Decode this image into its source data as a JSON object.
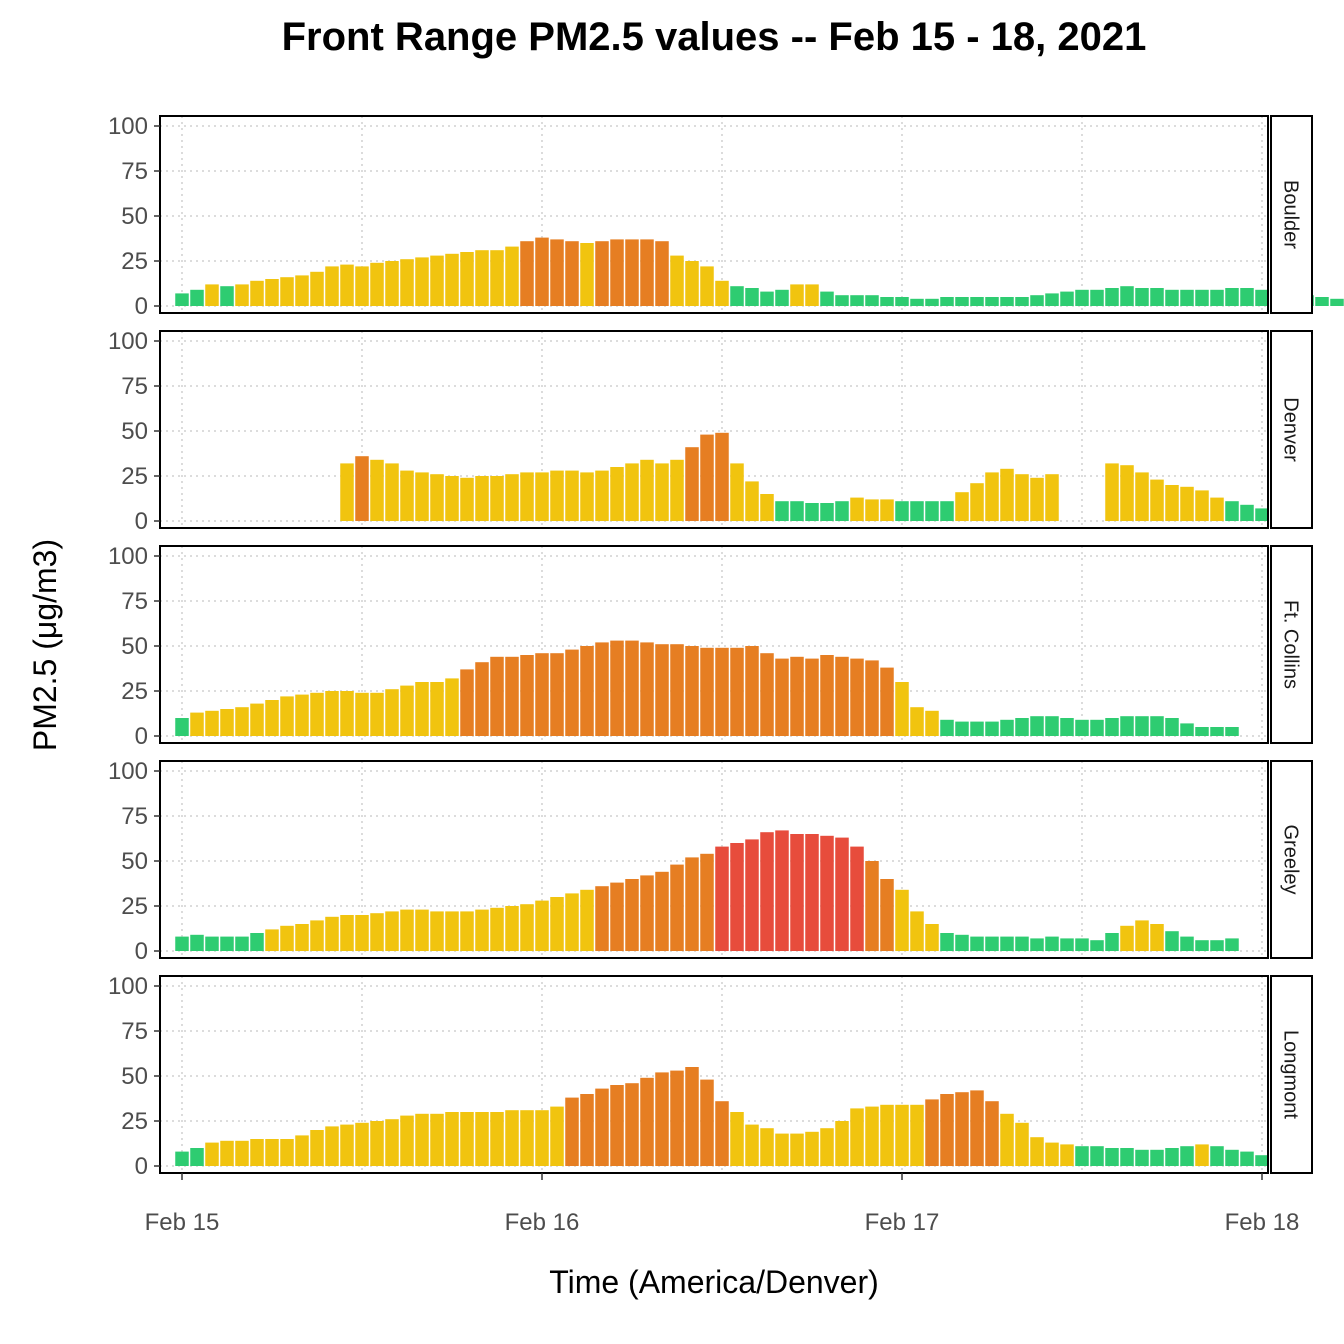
{
  "chart_data": {
    "type": "bar",
    "title": "Front Range PM2.5 values -- Feb 15 - 18, 2021",
    "xlabel": "Time (America/Denver)",
    "ylabel": "PM2.5 (μg/m3)",
    "ylim": [
      0,
      100
    ],
    "yticks": [
      0,
      25,
      50,
      75,
      100
    ],
    "x_start": "2021-02-15T00:00",
    "interval_hours": 1,
    "xticks": [
      "Feb 15",
      "Feb 16",
      "Feb 17",
      "Feb 18"
    ],
    "grid": true,
    "category_colors": {
      "good": "#2ecc71",
      "moderate": "#f1c40f",
      "usg": "#e67e22",
      "unhealthy": "#e74c3c"
    },
    "thresholds": {
      "moderate": 12,
      "usg": 35.5,
      "unhealthy": 55.5
    },
    "series": [
      {
        "name": "Boulder",
        "values": [
          7,
          9,
          12,
          11,
          12,
          14,
          15,
          16,
          17,
          19,
          22,
          23,
          22,
          24,
          25,
          26,
          27,
          28,
          29,
          30,
          31,
          31,
          33,
          36,
          38,
          37,
          36,
          35,
          36,
          37,
          37,
          37,
          36,
          28,
          25,
          22,
          14,
          11,
          10,
          8,
          9,
          12,
          12,
          8,
          6,
          6,
          6,
          5,
          5,
          4,
          4,
          5,
          5,
          5,
          5,
          5,
          5,
          6,
          7,
          8,
          9,
          9,
          10,
          11,
          10,
          10,
          9,
          9,
          9,
          9,
          10,
          10,
          9,
          8,
          7,
          6,
          5,
          4
        ]
      },
      {
        "name": "Denver",
        "values": [
          null,
          null,
          null,
          null,
          null,
          null,
          null,
          null,
          null,
          null,
          null,
          32,
          36,
          34,
          32,
          28,
          27,
          26,
          25,
          24,
          25,
          25,
          26,
          27,
          27,
          28,
          28,
          27,
          28,
          30,
          32,
          34,
          32,
          34,
          41,
          48,
          49,
          32,
          22,
          15,
          11,
          11,
          10,
          10,
          11,
          13,
          12,
          12,
          11,
          11,
          11,
          11,
          16,
          21,
          27,
          29,
          26,
          24,
          26,
          null,
          null,
          null,
          32,
          31,
          27,
          23,
          20,
          19,
          17,
          13,
          11,
          9,
          7,
          5,
          5
        ]
      },
      {
        "name": "Ft. Collins",
        "values": [
          10,
          13,
          14,
          15,
          16,
          18,
          20,
          22,
          23,
          24,
          25,
          25,
          24,
          24,
          26,
          28,
          30,
          30,
          32,
          37,
          41,
          44,
          44,
          45,
          46,
          46,
          48,
          50,
          52,
          53,
          53,
          52,
          51,
          51,
          50,
          49,
          49,
          49,
          50,
          46,
          43,
          44,
          43,
          45,
          44,
          43,
          42,
          38,
          30,
          16,
          14,
          9,
          8,
          8,
          8,
          9,
          10,
          11,
          11,
          10,
          9,
          9,
          10,
          11,
          11,
          11,
          10,
          7,
          5,
          5,
          5
        ]
      },
      {
        "name": "Greeley",
        "values": [
          8,
          9,
          8,
          8,
          8,
          10,
          12,
          14,
          15,
          17,
          19,
          20,
          20,
          21,
          22,
          23,
          23,
          22,
          22,
          22,
          23,
          24,
          25,
          26,
          28,
          30,
          32,
          34,
          36,
          38,
          40,
          42,
          44,
          48,
          52,
          54,
          58,
          60,
          62,
          66,
          67,
          65,
          65,
          64,
          63,
          58,
          50,
          40,
          34,
          22,
          15,
          10,
          9,
          8,
          8,
          8,
          8,
          7,
          8,
          7,
          7,
          6,
          10,
          14,
          17,
          15,
          11,
          8,
          6,
          6,
          7
        ]
      },
      {
        "name": "Longmont",
        "values": [
          8,
          10,
          13,
          14,
          14,
          15,
          15,
          15,
          17,
          20,
          22,
          23,
          24,
          25,
          26,
          28,
          29,
          29,
          30,
          30,
          30,
          30,
          31,
          31,
          31,
          33,
          38,
          40,
          43,
          45,
          46,
          49,
          52,
          53,
          55,
          48,
          36,
          30,
          23,
          21,
          18,
          18,
          19,
          21,
          25,
          32,
          33,
          34,
          34,
          34,
          37,
          40,
          41,
          42,
          36,
          29,
          24,
          16,
          13,
          12,
          11,
          11,
          10,
          10,
          9,
          9,
          10,
          11,
          12,
          11,
          9,
          8,
          6,
          5,
          5
        ]
      }
    ]
  }
}
